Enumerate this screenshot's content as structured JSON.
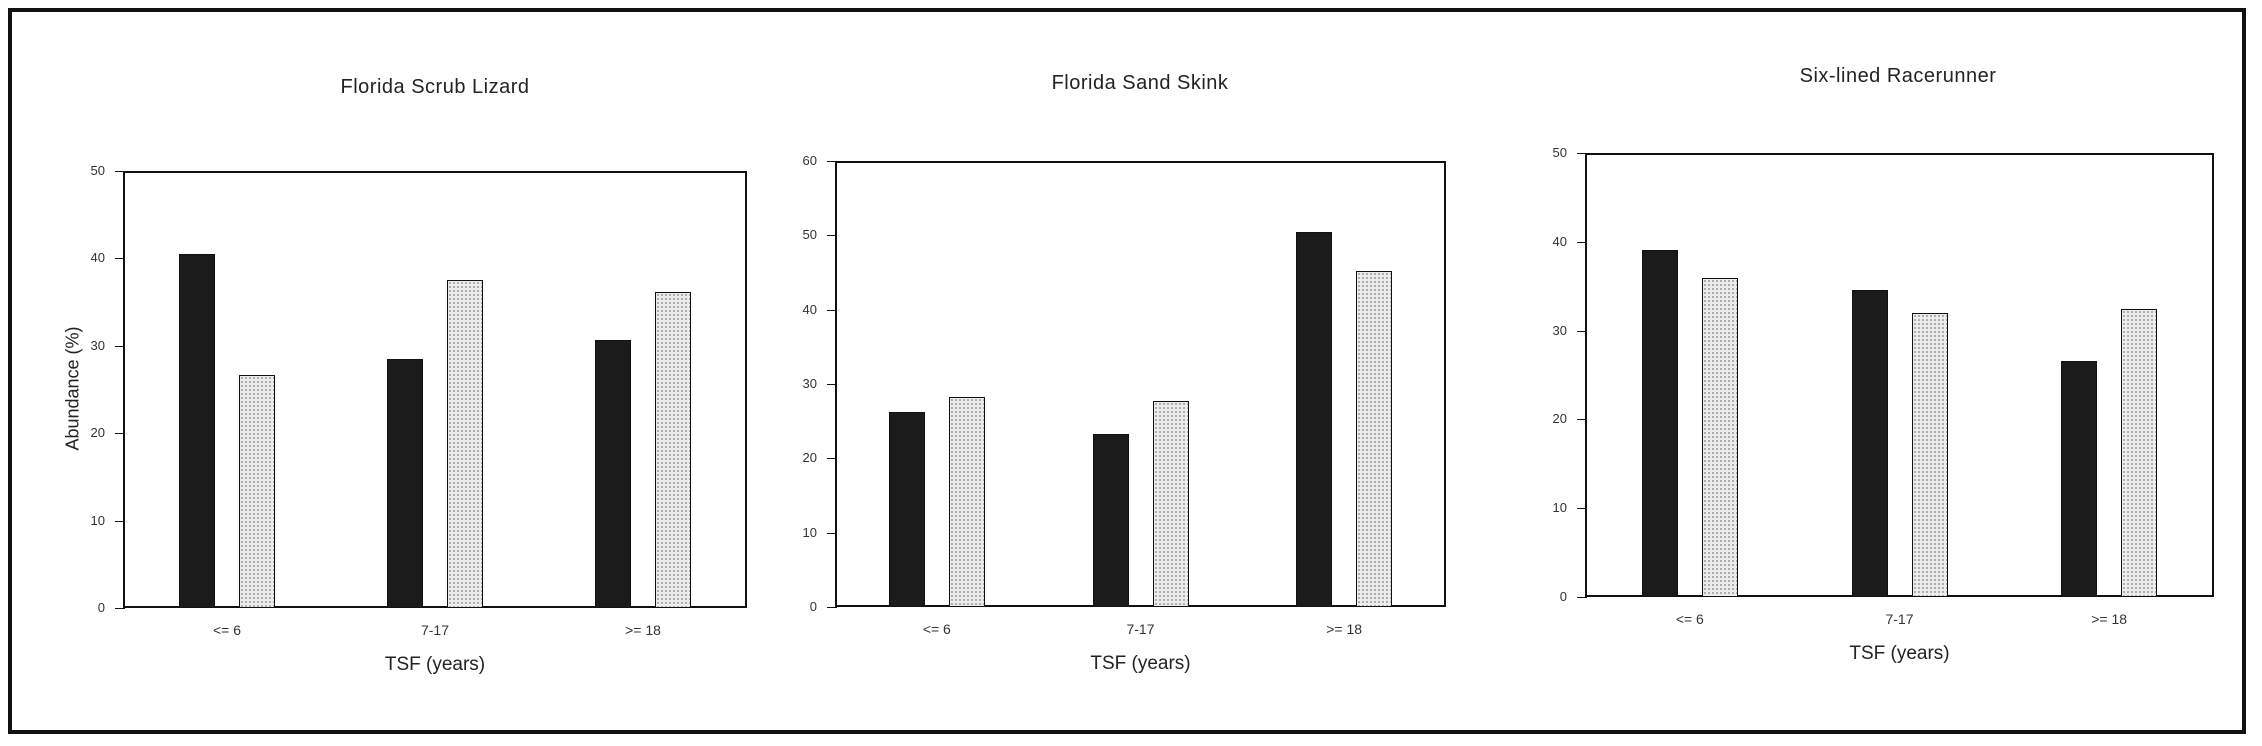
{
  "chart_data": [
    {
      "type": "bar",
      "title": "Florida Scrub Lizard",
      "xlabel": "TSF (years)",
      "ylabel": "Abundance (%)",
      "categories": [
        "<= 6",
        "7-17",
        ">= 18"
      ],
      "ylim": [
        0,
        50
      ],
      "yticks": [
        "0",
        "10",
        "20",
        "30",
        "40",
        "50"
      ],
      "series": [
        {
          "values": [
            40.5,
            28.5,
            30.7
          ],
          "color": "#1b1b1b"
        },
        {
          "values": [
            26.7,
            37.5,
            36.2
          ],
          "color": "#ececec"
        }
      ],
      "grid": false,
      "legend": "none"
    },
    {
      "type": "bar",
      "title": "Florida Sand Skink",
      "xlabel": "TSF (years)",
      "ylabel": "",
      "categories": [
        "<= 6",
        "7-17",
        ">= 18"
      ],
      "ylim": [
        0,
        60
      ],
      "yticks": [
        "0",
        "10",
        "20",
        "30",
        "40",
        "50",
        "60"
      ],
      "series": [
        {
          "values": [
            26.3,
            23.3,
            50.5
          ],
          "color": "#1b1b1b"
        },
        {
          "values": [
            28.3,
            27.7,
            45.2
          ],
          "color": "#ececec"
        }
      ],
      "grid": false,
      "legend": "none"
    },
    {
      "type": "bar",
      "title": "Six-lined Racerunner",
      "xlabel": "TSF (years)",
      "ylabel": "",
      "categories": [
        "<= 6",
        "7-17",
        ">= 18"
      ],
      "ylim": [
        0,
        50
      ],
      "yticks": [
        "0",
        "10",
        "20",
        "30",
        "40",
        "50"
      ],
      "series": [
        {
          "values": [
            39.1,
            34.6,
            26.6
          ],
          "color": "#1b1b1b"
        },
        {
          "values": [
            35.9,
            32.0,
            32.4
          ],
          "color": "#ececec"
        }
      ],
      "grid": false,
      "legend": "none"
    }
  ]
}
